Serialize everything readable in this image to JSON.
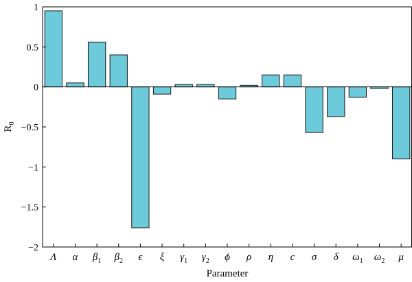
{
  "chart_data": {
    "type": "bar",
    "title": "",
    "xlabel": "Parameter",
    "ylabel": "R",
    "ylabel_sub": "0",
    "ylim": [
      -2,
      1
    ],
    "yticks": [
      1,
      0.5,
      0,
      -0.5,
      -1,
      -1.5,
      -2
    ],
    "ytick_labels": [
      "1",
      "0.5",
      "0",
      "−0.5",
      "−1",
      "−1.5",
      "−2"
    ],
    "grid": false,
    "legend": "none",
    "categories": [
      {
        "main": "Λ",
        "sub": ""
      },
      {
        "main": "α",
        "sub": ""
      },
      {
        "main": "β",
        "sub": "1"
      },
      {
        "main": "β",
        "sub": "2"
      },
      {
        "main": "ϵ",
        "sub": ""
      },
      {
        "main": "ξ",
        "sub": ""
      },
      {
        "main": "γ",
        "sub": "1"
      },
      {
        "main": "γ",
        "sub": "2"
      },
      {
        "main": "ϕ",
        "sub": ""
      },
      {
        "main": "ρ",
        "sub": ""
      },
      {
        "main": "η",
        "sub": ""
      },
      {
        "main": "c",
        "sub": ""
      },
      {
        "main": "σ",
        "sub": ""
      },
      {
        "main": "δ",
        "sub": ""
      },
      {
        "main": "ω",
        "sub": "1"
      },
      {
        "main": "ω",
        "sub": "2"
      },
      {
        "main": "μ",
        "sub": ""
      }
    ],
    "values": [
      0.95,
      0.05,
      0.56,
      0.4,
      -1.76,
      -0.09,
      0.03,
      0.03,
      -0.15,
      0.02,
      0.15,
      0.15,
      -0.57,
      -0.37,
      -0.13,
      -0.02,
      -0.9
    ],
    "bar_color": "#6ccadb",
    "bar_edge_color": "#1a1a1a"
  }
}
